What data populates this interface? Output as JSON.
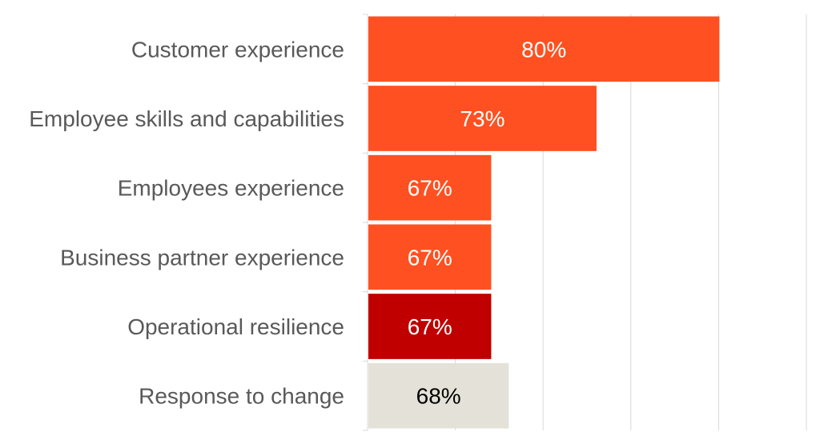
{
  "chart_data": {
    "type": "bar",
    "orientation": "horizontal",
    "title": "",
    "xlabel": "",
    "ylabel": "",
    "xlim": [
      60,
      85
    ],
    "x_gridlines": [
      65,
      70,
      75,
      80,
      85
    ],
    "grid": true,
    "legend": "none",
    "categories": [
      "Customer experience",
      "Employee skills and capabilities",
      "Employees experience",
      "Business partner experience",
      "Operational resilience",
      "Response to change"
    ],
    "values": [
      80,
      73,
      67,
      67,
      67,
      68
    ],
    "data_labels": [
      "80%",
      "73%",
      "67%",
      "67%",
      "67%",
      "68%"
    ],
    "bar_colors": [
      "#FF5021",
      "#FF5021",
      "#FF5021",
      "#FF5021",
      "#C00000",
      "#E4E2D8"
    ],
    "label_colors": [
      "#FFFFFF",
      "#FFFFFF",
      "#FFFFFF",
      "#FFFFFF",
      "#FFFFFF",
      "#000000"
    ]
  }
}
